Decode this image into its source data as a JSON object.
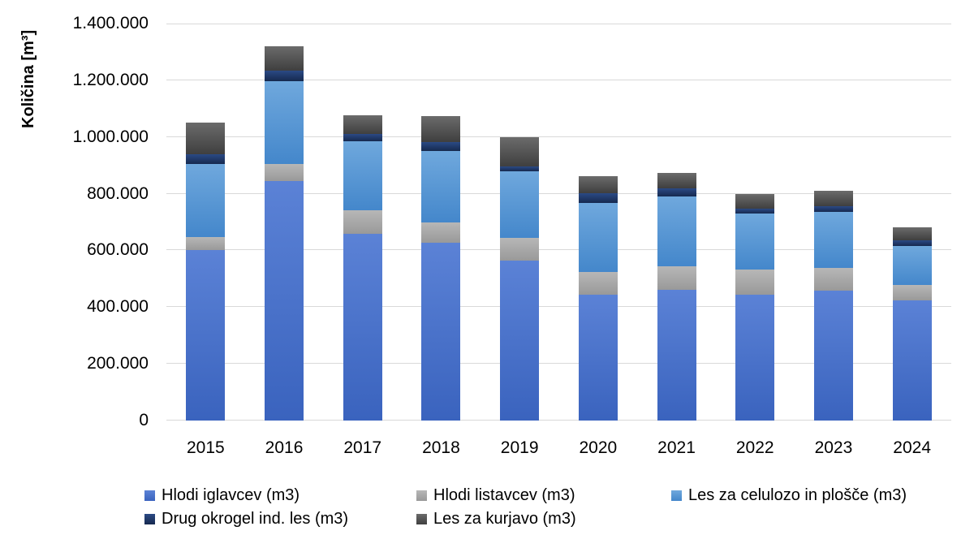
{
  "chart_data": {
    "type": "bar",
    "stacked": true,
    "title": "",
    "xlabel": "",
    "ylabel": "Količina [m³]",
    "categories": [
      "2015",
      "2016",
      "2017",
      "2018",
      "2019",
      "2020",
      "2021",
      "2022",
      "2023",
      "2024"
    ],
    "series": [
      {
        "name": "Hlodi iglavcev (m3)",
        "color": "#4472C4",
        "color_top": "#5b82d6",
        "color_bottom": "#3a63be",
        "values": [
          600000,
          845000,
          660000,
          628000,
          564000,
          445000,
          462000,
          445000,
          457000,
          425000
        ]
      },
      {
        "name": "Hlodi listavcev (m3)",
        "color": "#A6A6A6",
        "color_top": "#b7b7b7",
        "color_bottom": "#999999",
        "values": [
          48000,
          60000,
          82000,
          72000,
          79000,
          80000,
          81000,
          88000,
          81000,
          53000
        ]
      },
      {
        "name": "Les za celulozo in plošče (m3)",
        "color": "#5B9BD5",
        "color_top": "#6fa8dd",
        "color_bottom": "#4487cb",
        "values": [
          257000,
          292000,
          242000,
          252000,
          235000,
          244000,
          247000,
          196000,
          197000,
          139000
        ]
      },
      {
        "name": "Drug okrogel ind. les (m3)",
        "color": "#1F3864",
        "color_top": "#2b4a85",
        "color_bottom": "#16294f",
        "values": [
          33000,
          38000,
          26000,
          29000,
          19000,
          33000,
          29000,
          19000,
          22000,
          19000
        ]
      },
      {
        "name": "Les za kurjavo (m3)",
        "color": "#595959",
        "color_top": "#6b6b6b",
        "color_bottom": "#3f3f3f",
        "values": [
          112000,
          84000,
          68000,
          93000,
          101000,
          60000,
          55000,
          50000,
          54000,
          45000
        ]
      }
    ],
    "totals": [
      1050000,
      1319000,
      1078000,
      1074000,
      998000,
      862000,
      874000,
      798000,
      811000,
      681000
    ],
    "ylim": [
      0,
      1400000
    ],
    "ytick_step": 200000,
    "ytick_labels": [
      "0",
      "200.000",
      "400.000",
      "600.000",
      "800.000",
      "1.000.000",
      "1.200.000",
      "1.400.000"
    ],
    "grid": "horizontal",
    "gridline_color": "#d9d9d9",
    "legend_position": "bottom"
  }
}
